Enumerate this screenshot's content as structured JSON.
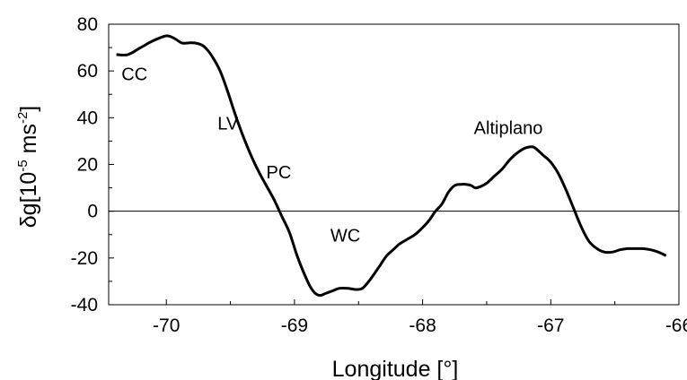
{
  "chart_data": {
    "type": "line",
    "title": "",
    "xlabel": "Longitude [°]",
    "ylabel": "δg[10-5 ms-2]",
    "xlim": [
      -70.45,
      -66.0
    ],
    "ylim": [
      -40,
      80
    ],
    "x_ticks": [
      -70,
      -69,
      -68,
      -67,
      -66
    ],
    "x_tick_labels": [
      "-70",
      "-69",
      "-68",
      "-67",
      "-66"
    ],
    "y_ticks": [
      -40,
      -20,
      0,
      20,
      40,
      60,
      80
    ],
    "y_tick_labels": [
      "-40",
      "-20",
      "0",
      "20",
      "40",
      "60",
      "80"
    ],
    "grid": false,
    "zero_line": true,
    "series": [
      {
        "name": "",
        "color": "#000000",
        "x": [
          -70.39,
          -70.3,
          -70.2,
          -70.1,
          -70.0,
          -69.94,
          -69.88,
          -69.83,
          -69.78,
          -69.72,
          -69.68,
          -69.64,
          -69.58,
          -69.52,
          -69.46,
          -69.4,
          -69.34,
          -69.28,
          -69.22,
          -69.16,
          -69.1,
          -69.04,
          -68.98,
          -68.93,
          -68.88,
          -68.84,
          -68.8,
          -68.75,
          -68.7,
          -68.65,
          -68.58,
          -68.52,
          -68.47,
          -68.42,
          -68.38,
          -68.33,
          -68.28,
          -68.22,
          -68.18,
          -68.12,
          -68.06,
          -68.0,
          -67.95,
          -67.9,
          -67.85,
          -67.8,
          -67.75,
          -67.7,
          -67.66,
          -67.62,
          -67.59,
          -67.55,
          -67.5,
          -67.44,
          -67.38,
          -67.32,
          -67.26,
          -67.2,
          -67.14,
          -67.1,
          -67.06,
          -67.0,
          -66.94,
          -66.88,
          -66.82,
          -66.76,
          -66.7,
          -66.64,
          -66.58,
          -66.52,
          -66.46,
          -66.4,
          -66.34,
          -66.28,
          -66.22,
          -66.16,
          -66.1
        ],
        "y": [
          67,
          67,
          70,
          73,
          75,
          74,
          72,
          72,
          72,
          71,
          69,
          66,
          60,
          51,
          41,
          32,
          24,
          17,
          11,
          5,
          -2,
          -9,
          -19,
          -26,
          -32,
          -35,
          -36,
          -35,
          -34,
          -33,
          -33,
          -33.5,
          -33,
          -30,
          -27,
          -23,
          -19,
          -16,
          -14,
          -12,
          -10,
          -7,
          -4,
          0,
          3,
          8,
          11,
          11.5,
          11.5,
          11,
          10,
          10.5,
          12,
          15,
          18,
          22,
          25,
          27,
          27.5,
          26,
          24,
          21,
          16,
          9,
          1,
          -7,
          -13,
          -16,
          -17.5,
          -17.5,
          -16.5,
          -16,
          -16,
          -16,
          -16.5,
          -17.5,
          -19
        ]
      }
    ],
    "annotations": [
      {
        "text": "CC",
        "x": -70.35,
        "y": 56
      },
      {
        "text": "LV",
        "x": -69.6,
        "y": 35
      },
      {
        "text": "PC",
        "x": -69.22,
        "y": 14
      },
      {
        "text": "WC",
        "x": -68.72,
        "y": -13
      },
      {
        "text": "Altiplano",
        "x": -67.6,
        "y": 33
      }
    ]
  }
}
